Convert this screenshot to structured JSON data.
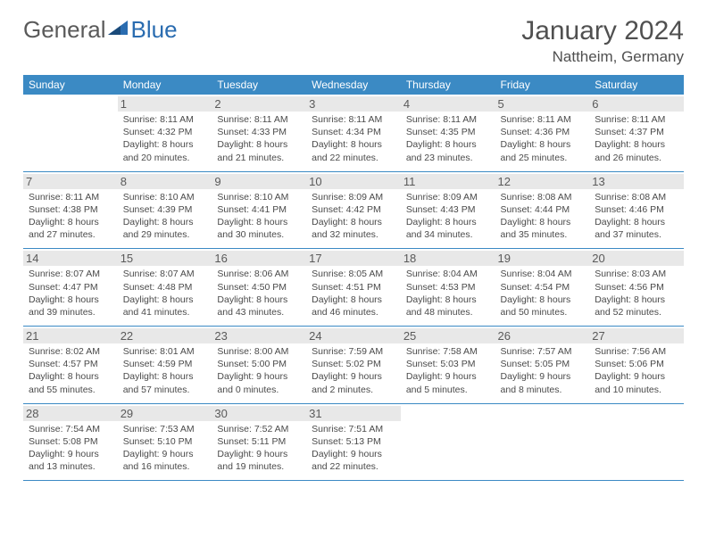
{
  "logo": {
    "general": "General",
    "blue": "Blue"
  },
  "header": {
    "month_year": "January 2024",
    "location": "Nattheim, Germany"
  },
  "colors": {
    "header_bg": "#3b8ac4",
    "header_text": "#ffffff",
    "day_number_bg": "#e8e8e8",
    "border": "#3b8ac4",
    "logo_blue": "#2a6cb0",
    "logo_gray": "#5a5a5a",
    "body_text": "#4a4a4a"
  },
  "day_headers": [
    "Sunday",
    "Monday",
    "Tuesday",
    "Wednesday",
    "Thursday",
    "Friday",
    "Saturday"
  ],
  "weeks": [
    [
      null,
      {
        "num": "1",
        "sunrise": "Sunrise: 8:11 AM",
        "sunset": "Sunset: 4:32 PM",
        "daylight": "Daylight: 8 hours and 20 minutes."
      },
      {
        "num": "2",
        "sunrise": "Sunrise: 8:11 AM",
        "sunset": "Sunset: 4:33 PM",
        "daylight": "Daylight: 8 hours and 21 minutes."
      },
      {
        "num": "3",
        "sunrise": "Sunrise: 8:11 AM",
        "sunset": "Sunset: 4:34 PM",
        "daylight": "Daylight: 8 hours and 22 minutes."
      },
      {
        "num": "4",
        "sunrise": "Sunrise: 8:11 AM",
        "sunset": "Sunset: 4:35 PM",
        "daylight": "Daylight: 8 hours and 23 minutes."
      },
      {
        "num": "5",
        "sunrise": "Sunrise: 8:11 AM",
        "sunset": "Sunset: 4:36 PM",
        "daylight": "Daylight: 8 hours and 25 minutes."
      },
      {
        "num": "6",
        "sunrise": "Sunrise: 8:11 AM",
        "sunset": "Sunset: 4:37 PM",
        "daylight": "Daylight: 8 hours and 26 minutes."
      }
    ],
    [
      {
        "num": "7",
        "sunrise": "Sunrise: 8:11 AM",
        "sunset": "Sunset: 4:38 PM",
        "daylight": "Daylight: 8 hours and 27 minutes."
      },
      {
        "num": "8",
        "sunrise": "Sunrise: 8:10 AM",
        "sunset": "Sunset: 4:39 PM",
        "daylight": "Daylight: 8 hours and 29 minutes."
      },
      {
        "num": "9",
        "sunrise": "Sunrise: 8:10 AM",
        "sunset": "Sunset: 4:41 PM",
        "daylight": "Daylight: 8 hours and 30 minutes."
      },
      {
        "num": "10",
        "sunrise": "Sunrise: 8:09 AM",
        "sunset": "Sunset: 4:42 PM",
        "daylight": "Daylight: 8 hours and 32 minutes."
      },
      {
        "num": "11",
        "sunrise": "Sunrise: 8:09 AM",
        "sunset": "Sunset: 4:43 PM",
        "daylight": "Daylight: 8 hours and 34 minutes."
      },
      {
        "num": "12",
        "sunrise": "Sunrise: 8:08 AM",
        "sunset": "Sunset: 4:44 PM",
        "daylight": "Daylight: 8 hours and 35 minutes."
      },
      {
        "num": "13",
        "sunrise": "Sunrise: 8:08 AM",
        "sunset": "Sunset: 4:46 PM",
        "daylight": "Daylight: 8 hours and 37 minutes."
      }
    ],
    [
      {
        "num": "14",
        "sunrise": "Sunrise: 8:07 AM",
        "sunset": "Sunset: 4:47 PM",
        "daylight": "Daylight: 8 hours and 39 minutes."
      },
      {
        "num": "15",
        "sunrise": "Sunrise: 8:07 AM",
        "sunset": "Sunset: 4:48 PM",
        "daylight": "Daylight: 8 hours and 41 minutes."
      },
      {
        "num": "16",
        "sunrise": "Sunrise: 8:06 AM",
        "sunset": "Sunset: 4:50 PM",
        "daylight": "Daylight: 8 hours and 43 minutes."
      },
      {
        "num": "17",
        "sunrise": "Sunrise: 8:05 AM",
        "sunset": "Sunset: 4:51 PM",
        "daylight": "Daylight: 8 hours and 46 minutes."
      },
      {
        "num": "18",
        "sunrise": "Sunrise: 8:04 AM",
        "sunset": "Sunset: 4:53 PM",
        "daylight": "Daylight: 8 hours and 48 minutes."
      },
      {
        "num": "19",
        "sunrise": "Sunrise: 8:04 AM",
        "sunset": "Sunset: 4:54 PM",
        "daylight": "Daylight: 8 hours and 50 minutes."
      },
      {
        "num": "20",
        "sunrise": "Sunrise: 8:03 AM",
        "sunset": "Sunset: 4:56 PM",
        "daylight": "Daylight: 8 hours and 52 minutes."
      }
    ],
    [
      {
        "num": "21",
        "sunrise": "Sunrise: 8:02 AM",
        "sunset": "Sunset: 4:57 PM",
        "daylight": "Daylight: 8 hours and 55 minutes."
      },
      {
        "num": "22",
        "sunrise": "Sunrise: 8:01 AM",
        "sunset": "Sunset: 4:59 PM",
        "daylight": "Daylight: 8 hours and 57 minutes."
      },
      {
        "num": "23",
        "sunrise": "Sunrise: 8:00 AM",
        "sunset": "Sunset: 5:00 PM",
        "daylight": "Daylight: 9 hours and 0 minutes."
      },
      {
        "num": "24",
        "sunrise": "Sunrise: 7:59 AM",
        "sunset": "Sunset: 5:02 PM",
        "daylight": "Daylight: 9 hours and 2 minutes."
      },
      {
        "num": "25",
        "sunrise": "Sunrise: 7:58 AM",
        "sunset": "Sunset: 5:03 PM",
        "daylight": "Daylight: 9 hours and 5 minutes."
      },
      {
        "num": "26",
        "sunrise": "Sunrise: 7:57 AM",
        "sunset": "Sunset: 5:05 PM",
        "daylight": "Daylight: 9 hours and 8 minutes."
      },
      {
        "num": "27",
        "sunrise": "Sunrise: 7:56 AM",
        "sunset": "Sunset: 5:06 PM",
        "daylight": "Daylight: 9 hours and 10 minutes."
      }
    ],
    [
      {
        "num": "28",
        "sunrise": "Sunrise: 7:54 AM",
        "sunset": "Sunset: 5:08 PM",
        "daylight": "Daylight: 9 hours and 13 minutes."
      },
      {
        "num": "29",
        "sunrise": "Sunrise: 7:53 AM",
        "sunset": "Sunset: 5:10 PM",
        "daylight": "Daylight: 9 hours and 16 minutes."
      },
      {
        "num": "30",
        "sunrise": "Sunrise: 7:52 AM",
        "sunset": "Sunset: 5:11 PM",
        "daylight": "Daylight: 9 hours and 19 minutes."
      },
      {
        "num": "31",
        "sunrise": "Sunrise: 7:51 AM",
        "sunset": "Sunset: 5:13 PM",
        "daylight": "Daylight: 9 hours and 22 minutes."
      },
      null,
      null,
      null
    ]
  ]
}
